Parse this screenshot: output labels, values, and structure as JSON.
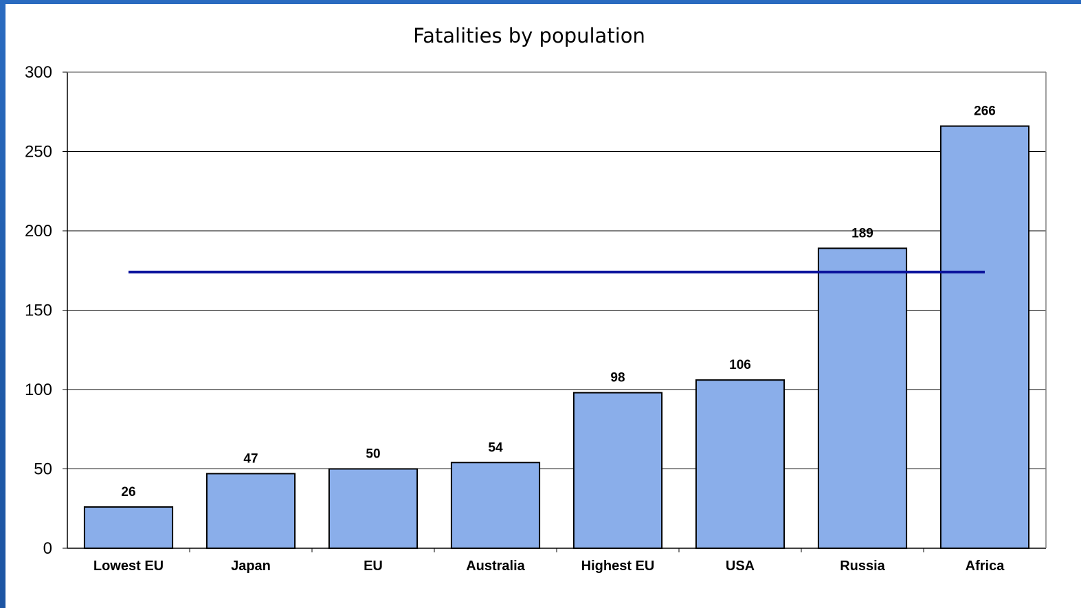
{
  "chart_data": {
    "type": "bar",
    "title": "Fatalities by population",
    "xlabel": "",
    "ylabel": "",
    "categories": [
      "Lowest EU",
      "Japan",
      "EU",
      "Australia",
      "Highest EU",
      "USA",
      "Russia",
      "Africa"
    ],
    "values": [
      26,
      47,
      50,
      54,
      98,
      106,
      189,
      266
    ],
    "data_labels": [
      "26",
      "47",
      "50",
      "54",
      "98",
      "106",
      "189",
      "266"
    ],
    "ylim": [
      0,
      300
    ],
    "yticks": [
      "0",
      "50",
      "100",
      "150",
      "200",
      "250",
      "300"
    ],
    "grid": true,
    "legend": "none",
    "reference_line": {
      "value": 174,
      "from_category": "Lowest EU",
      "to_category": "Africa"
    },
    "colors": {
      "bar_fill": "#8aaeea",
      "bar_stroke": "#000000",
      "reference_line": "#0a129c",
      "frame": "#1f5aa8"
    }
  }
}
